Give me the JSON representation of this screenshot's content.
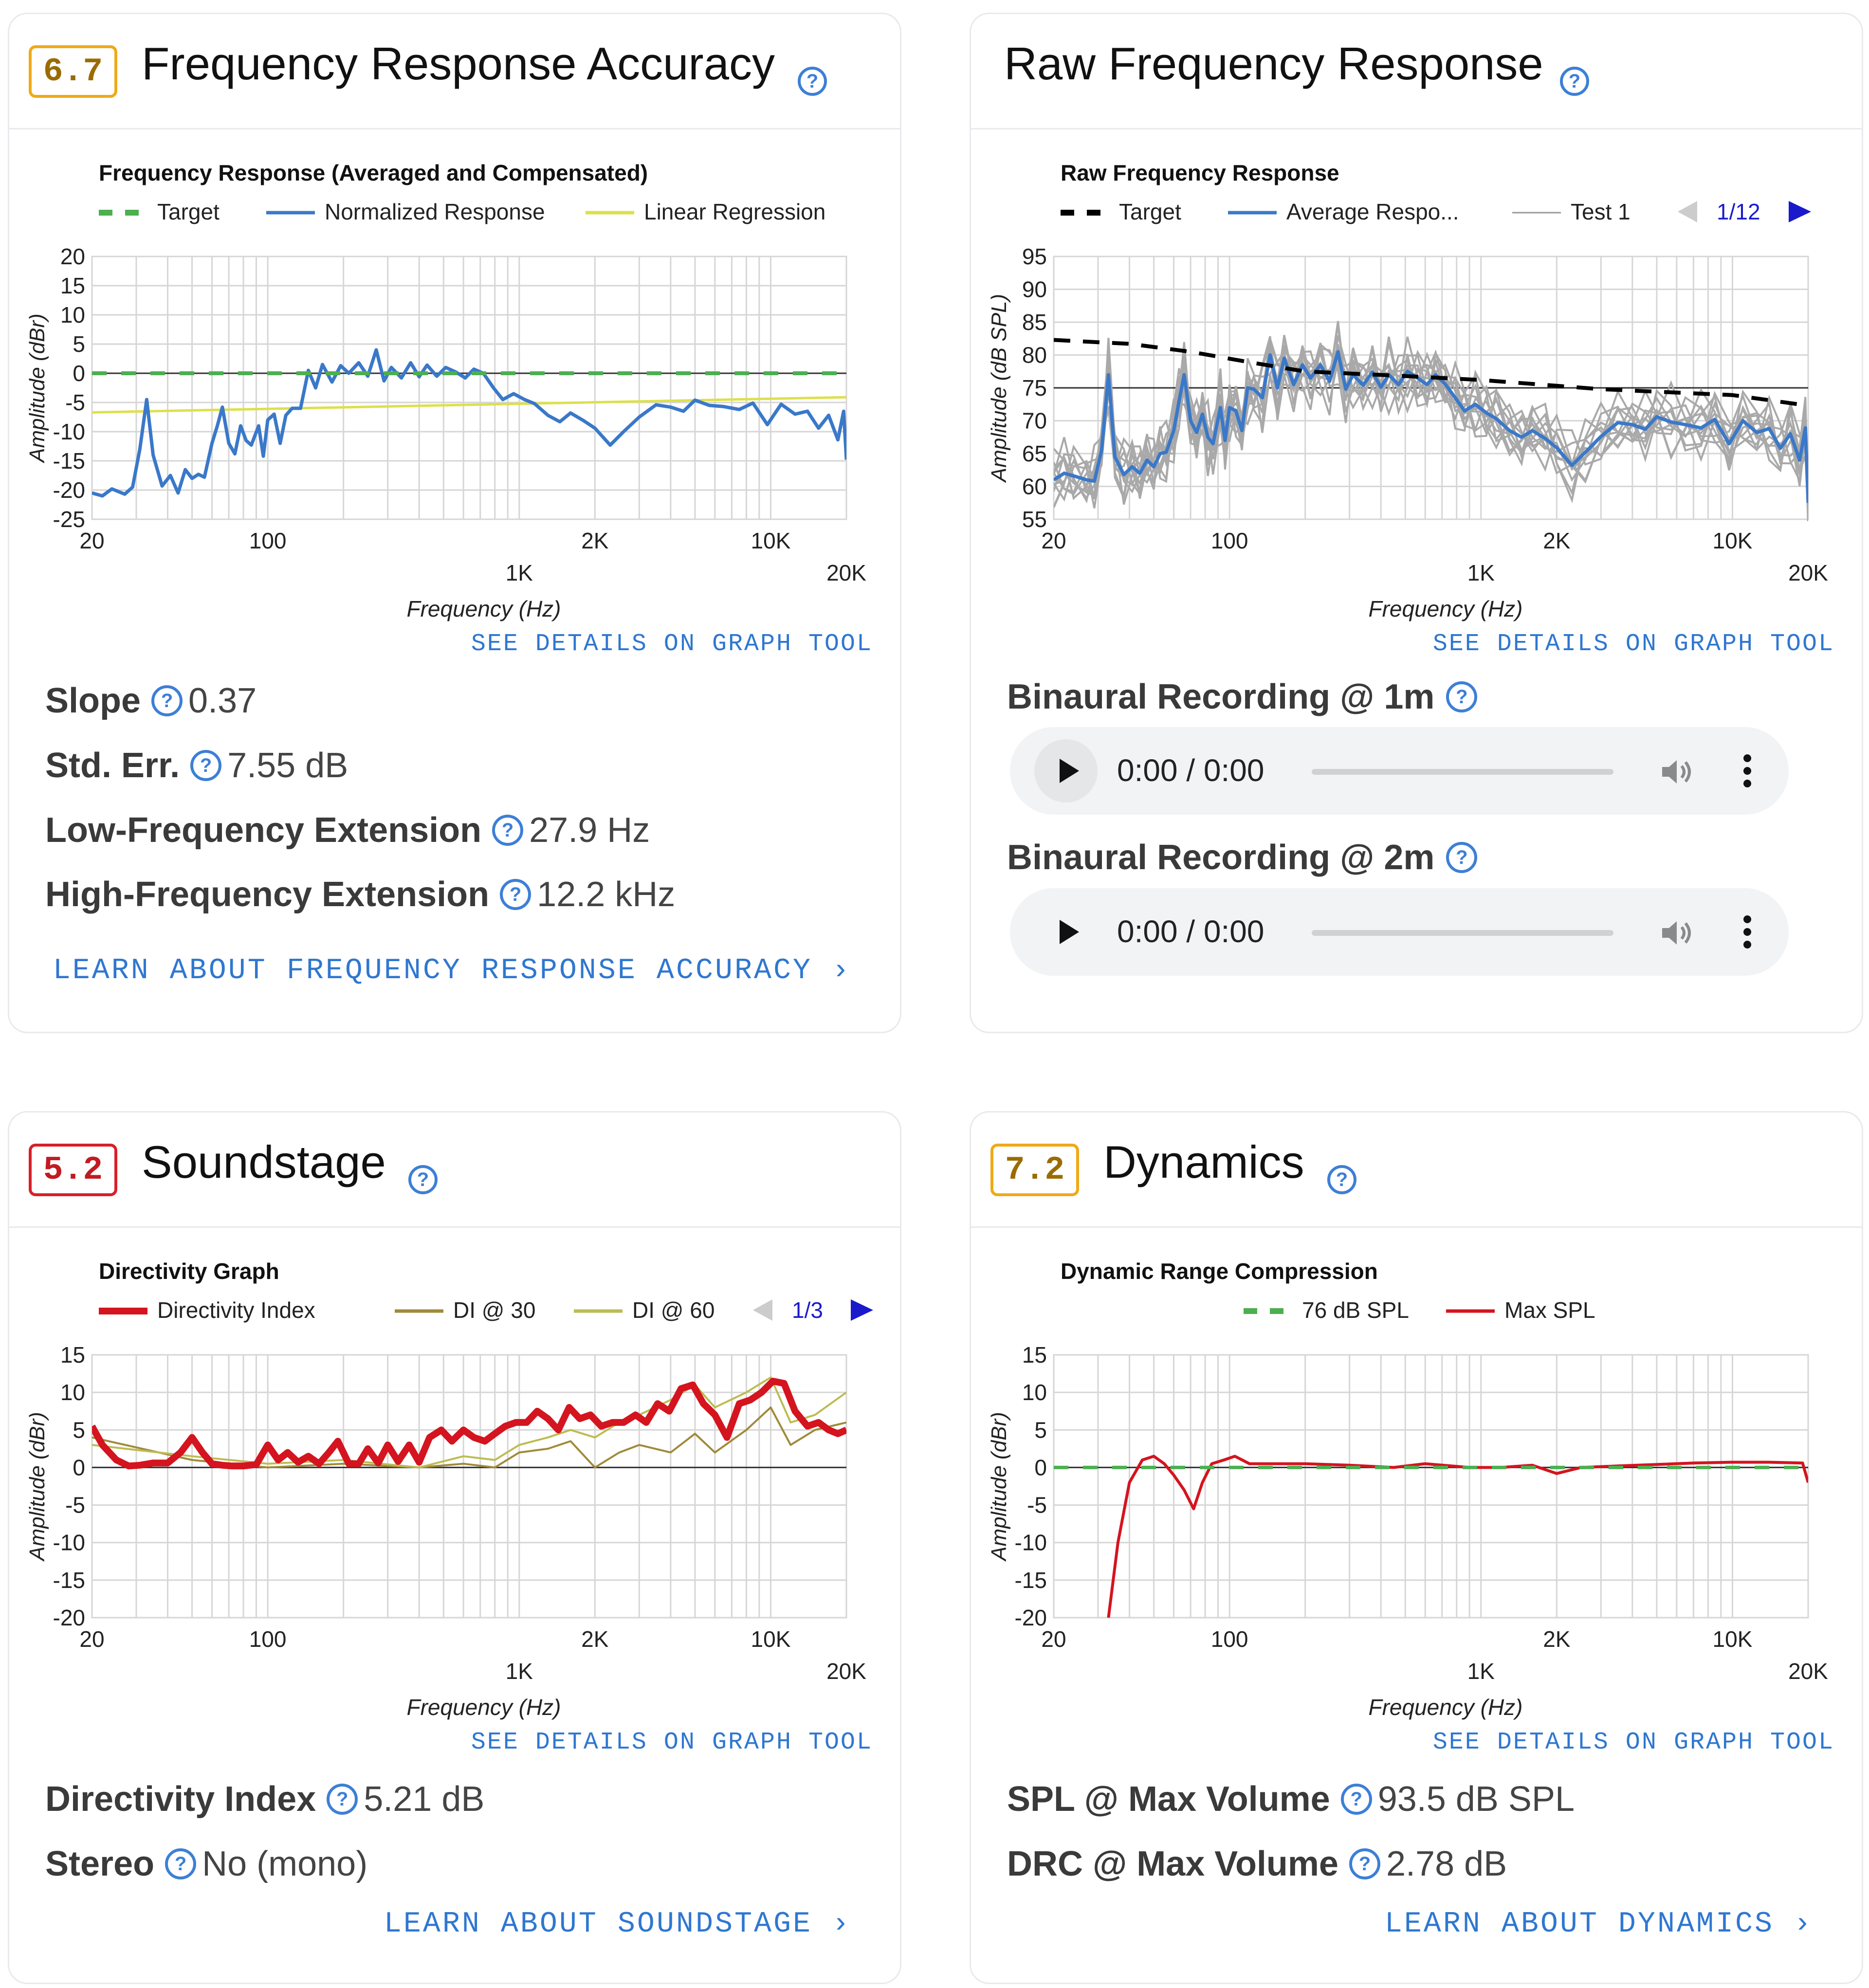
{
  "cards": {
    "fra": {
      "score": "6.7",
      "title": "Frequency Response Accuracy",
      "graph_link": "SEE DETAILS ON GRAPH TOOL",
      "stats": [
        {
          "label": "Slope",
          "value": "0.37"
        },
        {
          "label": "Std. Err.",
          "value": "7.55 dB"
        },
        {
          "label": "Low-Frequency Extension",
          "value": "27.9 Hz"
        },
        {
          "label": "High-Frequency Extension",
          "value": "12.2 kHz"
        }
      ],
      "learn": "LEARN ABOUT FREQUENCY RESPONSE ACCURACY ›"
    },
    "raw": {
      "title": "Raw Frequency Response",
      "graph_link": "SEE DETAILS ON GRAPH TOOL",
      "recordings": [
        {
          "label": "Binaural Recording @ 1m",
          "time": "0:00 / 0:00"
        },
        {
          "label": "Binaural Recording @ 2m",
          "time": "0:00 / 0:00"
        }
      ]
    },
    "sound": {
      "score": "5.2",
      "title": "Soundstage",
      "graph_link": "SEE DETAILS ON GRAPH TOOL",
      "stats": [
        {
          "label": "Directivity Index",
          "value": "5.21 dB"
        },
        {
          "label": "Stereo",
          "value": "No (mono)"
        }
      ],
      "learn": "LEARN ABOUT SOUNDSTAGE ›"
    },
    "dyn": {
      "score": "7.2",
      "title": "Dynamics",
      "graph_link": "SEE DETAILS ON GRAPH TOOL",
      "stats": [
        {
          "label": "SPL @ Max Volume",
          "value": "93.5 dB SPL"
        },
        {
          "label": "DRC @ Max Volume",
          "value": "2.78 dB"
        }
      ],
      "learn": "LEARN ABOUT DYNAMICS ›"
    }
  },
  "colors": {
    "score_yellow": "#efaa17",
    "score_red": "#d72029",
    "link_blue": "#2f77d0",
    "target_green": "#4caf50",
    "response_blue": "#3a78c9",
    "regression_yellow": "#dde04a",
    "di_red": "#d4141f"
  },
  "chart_data": [
    {
      "type": "line",
      "title": "Frequency Response (Averaged and Compensated)",
      "xlabel": "Frequency (Hz)",
      "ylabel": "Amplitude (dBr)",
      "x_scale": "log",
      "xlim": [
        20,
        20000
      ],
      "ylim": [
        -25,
        20
      ],
      "yticks": [
        20,
        15,
        10,
        5,
        0,
        -5,
        -10,
        -15,
        -20,
        -25
      ],
      "xticks": [
        "20",
        "100",
        "1K",
        "2K",
        "10K",
        "20K"
      ],
      "grid": true,
      "legend": "top",
      "series": [
        {
          "name": "Target",
          "style": "dashed",
          "color": "#4caf50",
          "x": [
            20,
            20000
          ],
          "y": [
            0,
            0
          ]
        },
        {
          "name": "Normalized Response",
          "color": "#3a78c9",
          "x": [
            20,
            22,
            24,
            27,
            29,
            31,
            33,
            35,
            38,
            41,
            44,
            47,
            50,
            53,
            56,
            60,
            63,
            66,
            70,
            74,
            78,
            82,
            86,
            92,
            96,
            100,
            106,
            112,
            118,
            125,
            135,
            145,
            155,
            165,
            180,
            195,
            210,
            230,
            250,
            270,
            290,
            310,
            340,
            370,
            400,
            430,
            470,
            510,
            560,
            610,
            660,
            720,
            790,
            860,
            950,
            1050,
            1150,
            1300,
            1450,
            1600,
            1800,
            2000,
            2300,
            2600,
            3000,
            3500,
            4000,
            4500,
            5000,
            5700,
            6500,
            7500,
            8500,
            9700,
            11000,
            12500,
            14000,
            15500,
            17000,
            18500,
            19500,
            20000
          ],
          "y": [
            -20.5,
            -21,
            -19.8,
            -20.7,
            -19.5,
            -13,
            -4.5,
            -14,
            -19.3,
            -17.5,
            -20.5,
            -16.5,
            -18,
            -17.3,
            -17.8,
            -12,
            -9,
            -5.8,
            -12,
            -13.8,
            -9,
            -11.5,
            -12.3,
            -9,
            -14.2,
            -8,
            -7,
            -12,
            -7.2,
            -6,
            -6,
            0.5,
            -2.5,
            1.5,
            -1.5,
            1.3,
            0,
            1.8,
            -0.5,
            4,
            -1.3,
            1,
            -0.8,
            1.8,
            -0.6,
            1.4,
            -0.5,
            1,
            0.2,
            -0.8,
            0.7,
            0,
            -2.5,
            -4.5,
            -3.5,
            -4.5,
            -5.2,
            -7.2,
            -8.3,
            -6.8,
            -8.1,
            -9.4,
            -12.3,
            -10,
            -7.5,
            -5.4,
            -5.8,
            -6.5,
            -4.6,
            -5.5,
            -5.7,
            -6.2,
            -5.1,
            -8.8,
            -5.3,
            -7,
            -6.5,
            -9.4,
            -7.2,
            -11.4,
            -6.5,
            -14.8
          ]
        },
        {
          "name": "Linear Regression",
          "color": "#dde04a",
          "x": [
            20,
            20000
          ],
          "y": [
            -6.7,
            -4.1
          ]
        }
      ]
    },
    {
      "type": "line",
      "title": "Raw Frequency Response",
      "xlabel": "Frequency (Hz)",
      "ylabel": "Amplitude (dB SPL)",
      "x_scale": "log",
      "xlim": [
        20,
        20000
      ],
      "ylim": [
        55,
        95
      ],
      "yticks": [
        95,
        90,
        85,
        80,
        75,
        70,
        65,
        60,
        55
      ],
      "xticks": [
        "20",
        "100",
        "1K",
        "2K",
        "10K",
        "20K"
      ],
      "grid": true,
      "legend": "top",
      "legend_pager": "1/12",
      "series": [
        {
          "name": "Target",
          "style": "dashed",
          "color": "#000000",
          "x": [
            20,
            40,
            70,
            120,
            200,
            500,
            1000,
            3000,
            10000,
            20000
          ],
          "y": [
            82.3,
            81.7,
            80.5,
            78.9,
            77.5,
            76.8,
            76.2,
            74.8,
            73.9,
            72.3
          ]
        },
        {
          "name": "Average Response",
          "color": "#3a78c9",
          "x": [
            20,
            22,
            24,
            27,
            29,
            31,
            33,
            35,
            38,
            41,
            44,
            47,
            50,
            53,
            56,
            60,
            63,
            66,
            70,
            74,
            78,
            82,
            86,
            92,
            96,
            100,
            106,
            112,
            118,
            125,
            135,
            145,
            155,
            165,
            180,
            195,
            210,
            230,
            250,
            270,
            290,
            310,
            340,
            370,
            400,
            430,
            470,
            510,
            560,
            610,
            660,
            720,
            790,
            860,
            950,
            1050,
            1150,
            1300,
            1450,
            1600,
            1800,
            2000,
            2300,
            2600,
            3000,
            3500,
            4000,
            4500,
            5000,
            5700,
            6500,
            7500,
            8500,
            9700,
            11000,
            12500,
            14000,
            15500,
            17000,
            18500,
            19500,
            20000
          ],
          "y": [
            61,
            62,
            61.6,
            61,
            60.8,
            65.5,
            77,
            64.5,
            61.8,
            63,
            62,
            64,
            63,
            65,
            65.2,
            68.5,
            73,
            77,
            70,
            68.2,
            71,
            67.5,
            66.5,
            72,
            67,
            72,
            71.5,
            68.5,
            75,
            74.8,
            73.5,
            80,
            75,
            79.5,
            75.5,
            78.5,
            76.5,
            78.5,
            76,
            80.5,
            74.8,
            77,
            75.4,
            77.4,
            75.1,
            77,
            75.5,
            77.5,
            76.5,
            75.5,
            77,
            75.6,
            73.5,
            71.5,
            72.5,
            71.2,
            70.3,
            68.5,
            67.5,
            68.5,
            67.3,
            65.9,
            63.2,
            65.2,
            67.6,
            69.7,
            69.4,
            68.7,
            70.6,
            69.8,
            69.4,
            68.9,
            70.2,
            66.5,
            70,
            68.2,
            68.8,
            65.8,
            68,
            64,
            68.9,
            57.5
          ]
        }
      ]
    },
    {
      "type": "line",
      "title": "Directivity Graph",
      "xlabel": "Frequency (Hz)",
      "ylabel": "Amplitude (dBr)",
      "x_scale": "log",
      "xlim": [
        20,
        20000
      ],
      "ylim": [
        -20,
        15
      ],
      "yticks": [
        15,
        10,
        5,
        0,
        -5,
        -10,
        -15,
        -20
      ],
      "xticks": [
        "20",
        "100",
        "1K",
        "2K",
        "10K",
        "20K"
      ],
      "grid": true,
      "legend": "top",
      "legend_pager": "1/3",
      "series": [
        {
          "name": "Directivity Index",
          "color": "#d4141f",
          "x": [
            20,
            22,
            25,
            28,
            31,
            35,
            40,
            45,
            50,
            55,
            60,
            66,
            72,
            80,
            90,
            100,
            110,
            120,
            132,
            145,
            160,
            175,
            190,
            210,
            230,
            250,
            275,
            300,
            330,
            365,
            400,
            440,
            490,
            540,
            600,
            660,
            730,
            800,
            880,
            970,
            1070,
            1180,
            1300,
            1430,
            1580,
            1740,
            1920,
            2120,
            2350,
            2600,
            2900,
            3200,
            3550,
            3950,
            4400,
            4900,
            5400,
            6000,
            6700,
            7500,
            8300,
            9200,
            10200,
            11300,
            12500,
            14000,
            15500,
            17000,
            18500,
            20000
          ],
          "y": [
            5.5,
            3,
            1,
            0.2,
            0.3,
            0.6,
            0.6,
            2,
            4,
            2,
            0.5,
            0.3,
            0.2,
            0.2,
            0.4,
            3,
            1,
            2,
            0.7,
            1.5,
            0.5,
            2,
            3.5,
            0.5,
            0.5,
            2.5,
            0.6,
            3,
            0.8,
            3,
            0.7,
            4,
            5,
            3.5,
            5,
            4,
            3.5,
            4.5,
            5.5,
            6,
            6,
            7.5,
            6.5,
            5,
            8,
            6.5,
            7,
            5.5,
            6,
            6,
            7,
            6,
            8.5,
            7.5,
            10.5,
            11,
            8.5,
            7,
            4,
            8.5,
            9,
            10,
            11.5,
            11.2,
            7.5,
            5.5,
            6,
            5,
            4.5,
            5
          ]
        },
        {
          "name": "DI @ 30",
          "color": "#a08a3a",
          "x": [
            20,
            50,
            100,
            200,
            400,
            600,
            800,
            1000,
            1300,
            1600,
            2000,
            2500,
            3000,
            4000,
            5000,
            6000,
            8000,
            10000,
            12000,
            15000,
            20000
          ],
          "y": [
            4,
            1,
            0,
            0.5,
            0,
            0.5,
            0,
            2,
            2.5,
            3.5,
            0,
            2,
            3,
            2,
            4.5,
            2,
            5,
            8,
            3,
            5,
            6
          ]
        },
        {
          "name": "DI @ 60",
          "color": "#bcbc52",
          "x": [
            20,
            50,
            100,
            200,
            400,
            600,
            800,
            1000,
            1300,
            1600,
            2000,
            2500,
            3000,
            4000,
            5000,
            6000,
            8000,
            10000,
            12000,
            15000,
            20000
          ],
          "y": [
            3,
            1.5,
            0.5,
            1,
            0,
            1.5,
            1,
            3,
            4,
            5,
            4,
            6,
            7,
            9,
            11,
            8,
            10,
            12,
            6,
            7,
            10
          ]
        }
      ]
    },
    {
      "type": "line",
      "title": "Dynamic Range Compression",
      "xlabel": "Frequency (Hz)",
      "ylabel": "Amplitude (dBr)",
      "x_scale": "log",
      "xlim": [
        20,
        20000
      ],
      "ylim": [
        -20,
        15
      ],
      "yticks": [
        15,
        10,
        5,
        0,
        -5,
        -10,
        -15,
        -20
      ],
      "xticks": [
        "20",
        "100",
        "1K",
        "2K",
        "10K",
        "20K"
      ],
      "grid": true,
      "legend": "top",
      "series": [
        {
          "name": "76 dB SPL",
          "style": "dashed",
          "color": "#4caf50",
          "x": [
            20,
            20000
          ],
          "y": [
            0,
            0
          ]
        },
        {
          "name": "Max SPL",
          "color": "#d4141f",
          "x": [
            33,
            36,
            40,
            45,
            50,
            55,
            60,
            66,
            72,
            78,
            85,
            95,
            105,
            120,
            150,
            200,
            300,
            450,
            600,
            900,
            1200,
            1600,
            2000,
            2500,
            3500,
            5000,
            7000,
            10000,
            14000,
            19000,
            20000
          ],
          "y": [
            -20,
            -10,
            -2,
            1,
            1.5,
            0.5,
            -1,
            -3,
            -5.5,
            -2,
            0.5,
            1,
            1.5,
            0.5,
            0.5,
            0.5,
            0.3,
            0,
            0.5,
            0,
            0,
            0.3,
            -0.8,
            0,
            0.2,
            0.4,
            0.6,
            0.7,
            0.7,
            0.6,
            -2
          ]
        }
      ]
    }
  ]
}
